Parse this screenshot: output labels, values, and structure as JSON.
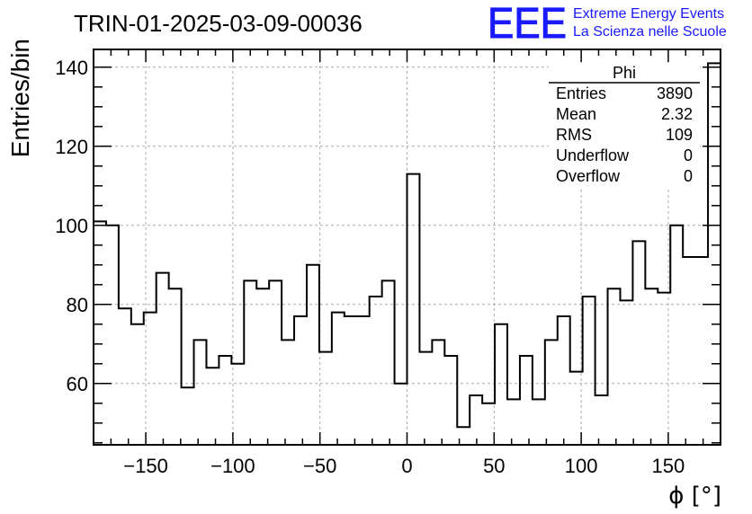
{
  "chart_data": {
    "type": "bar",
    "style": "step-histogram",
    "title": "TRIN-01-2025-03-09-00036",
    "xlabel": "ϕ [°]",
    "ylabel": "Entries/bin",
    "xlim": [
      -180,
      180
    ],
    "ylim": [
      44.5,
      144.5
    ],
    "bin_width": 7.2,
    "values": [
      101,
      100,
      79,
      75,
      78,
      88,
      84,
      59,
      71,
      64,
      67,
      65,
      86,
      84,
      86,
      71,
      77,
      90,
      68,
      78,
      77,
      77,
      82,
      86,
      60,
      113,
      68,
      71,
      67,
      49,
      57,
      55,
      75,
      56,
      67,
      56,
      71,
      77,
      63,
      82,
      57,
      84,
      81,
      96,
      84,
      83,
      100,
      92,
      92,
      141
    ],
    "x_ticks": [
      -150,
      -100,
      -50,
      0,
      50,
      100,
      150
    ],
    "x_tick_labels": [
      "−150",
      "−100",
      "−50",
      "0",
      "50",
      "100",
      "150"
    ],
    "y_ticks": [
      60,
      80,
      100,
      120,
      140
    ],
    "y_tick_labels": [
      "60",
      "80",
      "100",
      "120",
      "140"
    ],
    "grid": true,
    "stats_box": {
      "title": "Phi",
      "placement": "top-right",
      "rows": [
        {
          "label": "Entries",
          "value": "3890"
        },
        {
          "label": "Mean",
          "value": "2.32"
        },
        {
          "label": "RMS",
          "value": "109"
        },
        {
          "label": "Underflow",
          "value": "0"
        },
        {
          "label": "Overflow",
          "value": "0"
        }
      ]
    }
  },
  "logo": {
    "mark": "EEE",
    "line1": "Extreme Energy Events",
    "line2": "La Scienza nelle Scuole",
    "color": "#1a1aff"
  },
  "colors": {
    "line": "#000000",
    "grid": "#aaaaaa"
  }
}
